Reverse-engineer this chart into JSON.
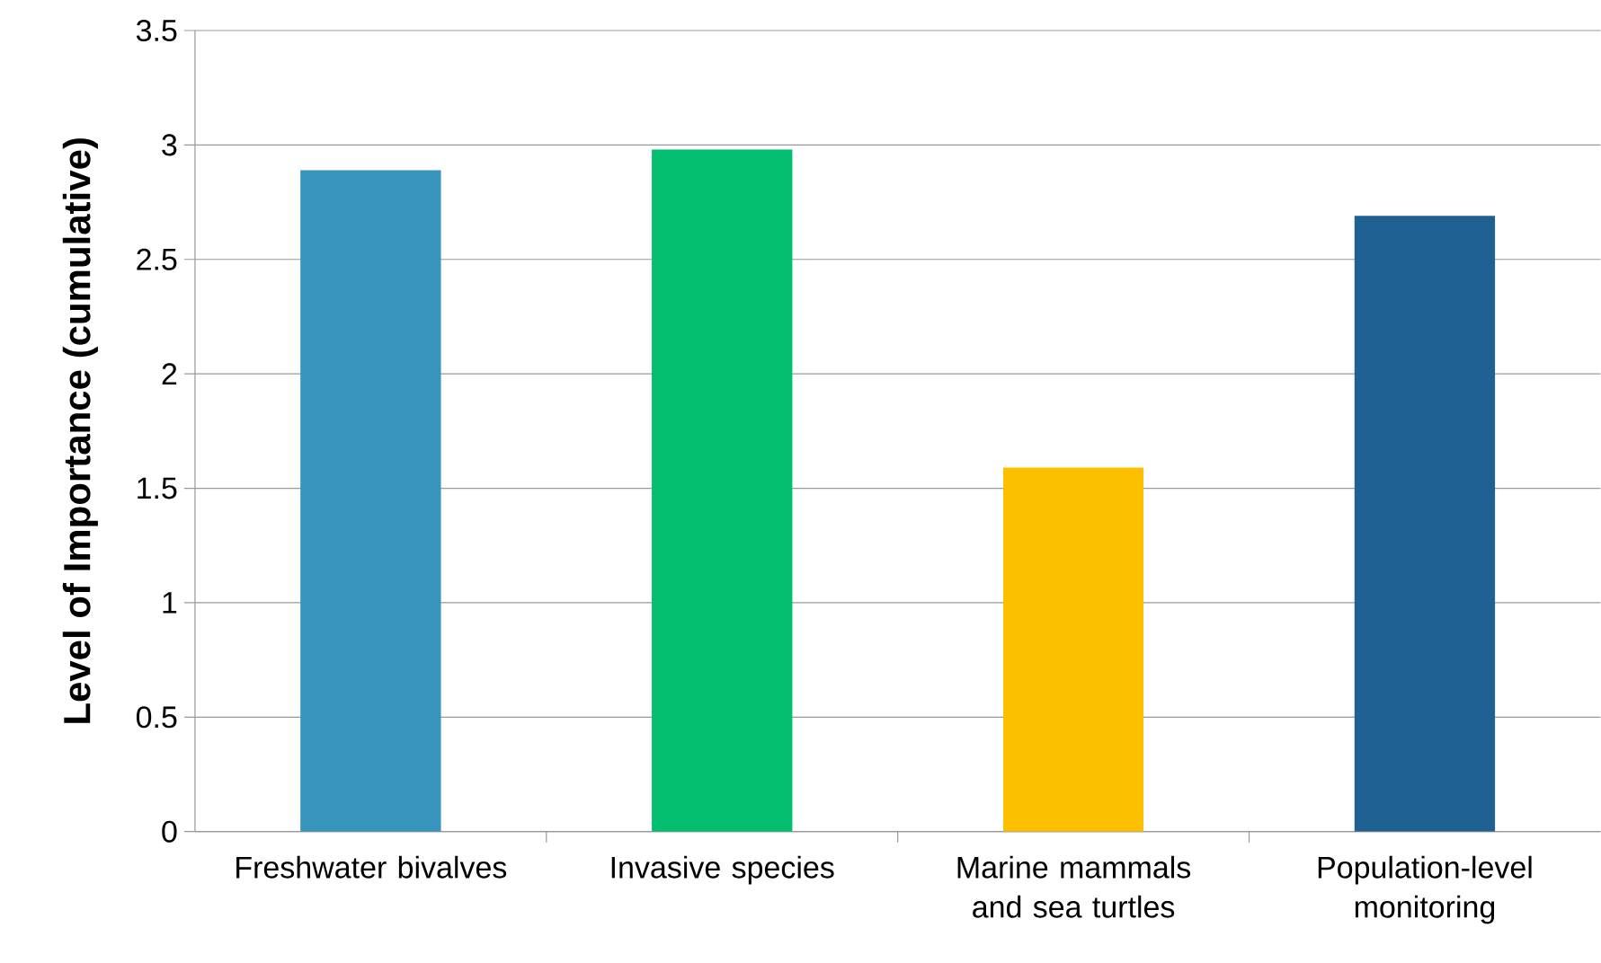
{
  "chart_data": {
    "type": "bar",
    "ylabel": "Level of Importance (cumulative)",
    "categories": [
      "Freshwater bivalves",
      "Invasive species",
      "Marine mammals and sea turtles",
      "Population-level monitoring"
    ],
    "values": [
      2.89,
      2.98,
      1.59,
      2.69
    ],
    "colors": [
      "#3694bd",
      "#02be6e",
      "#fdc000",
      "#1f6192"
    ],
    "ylim": [
      0,
      3.5
    ],
    "yticks": [
      0,
      0.5,
      1,
      1.5,
      2,
      2.5,
      3,
      3.5
    ],
    "grid": "y"
  }
}
